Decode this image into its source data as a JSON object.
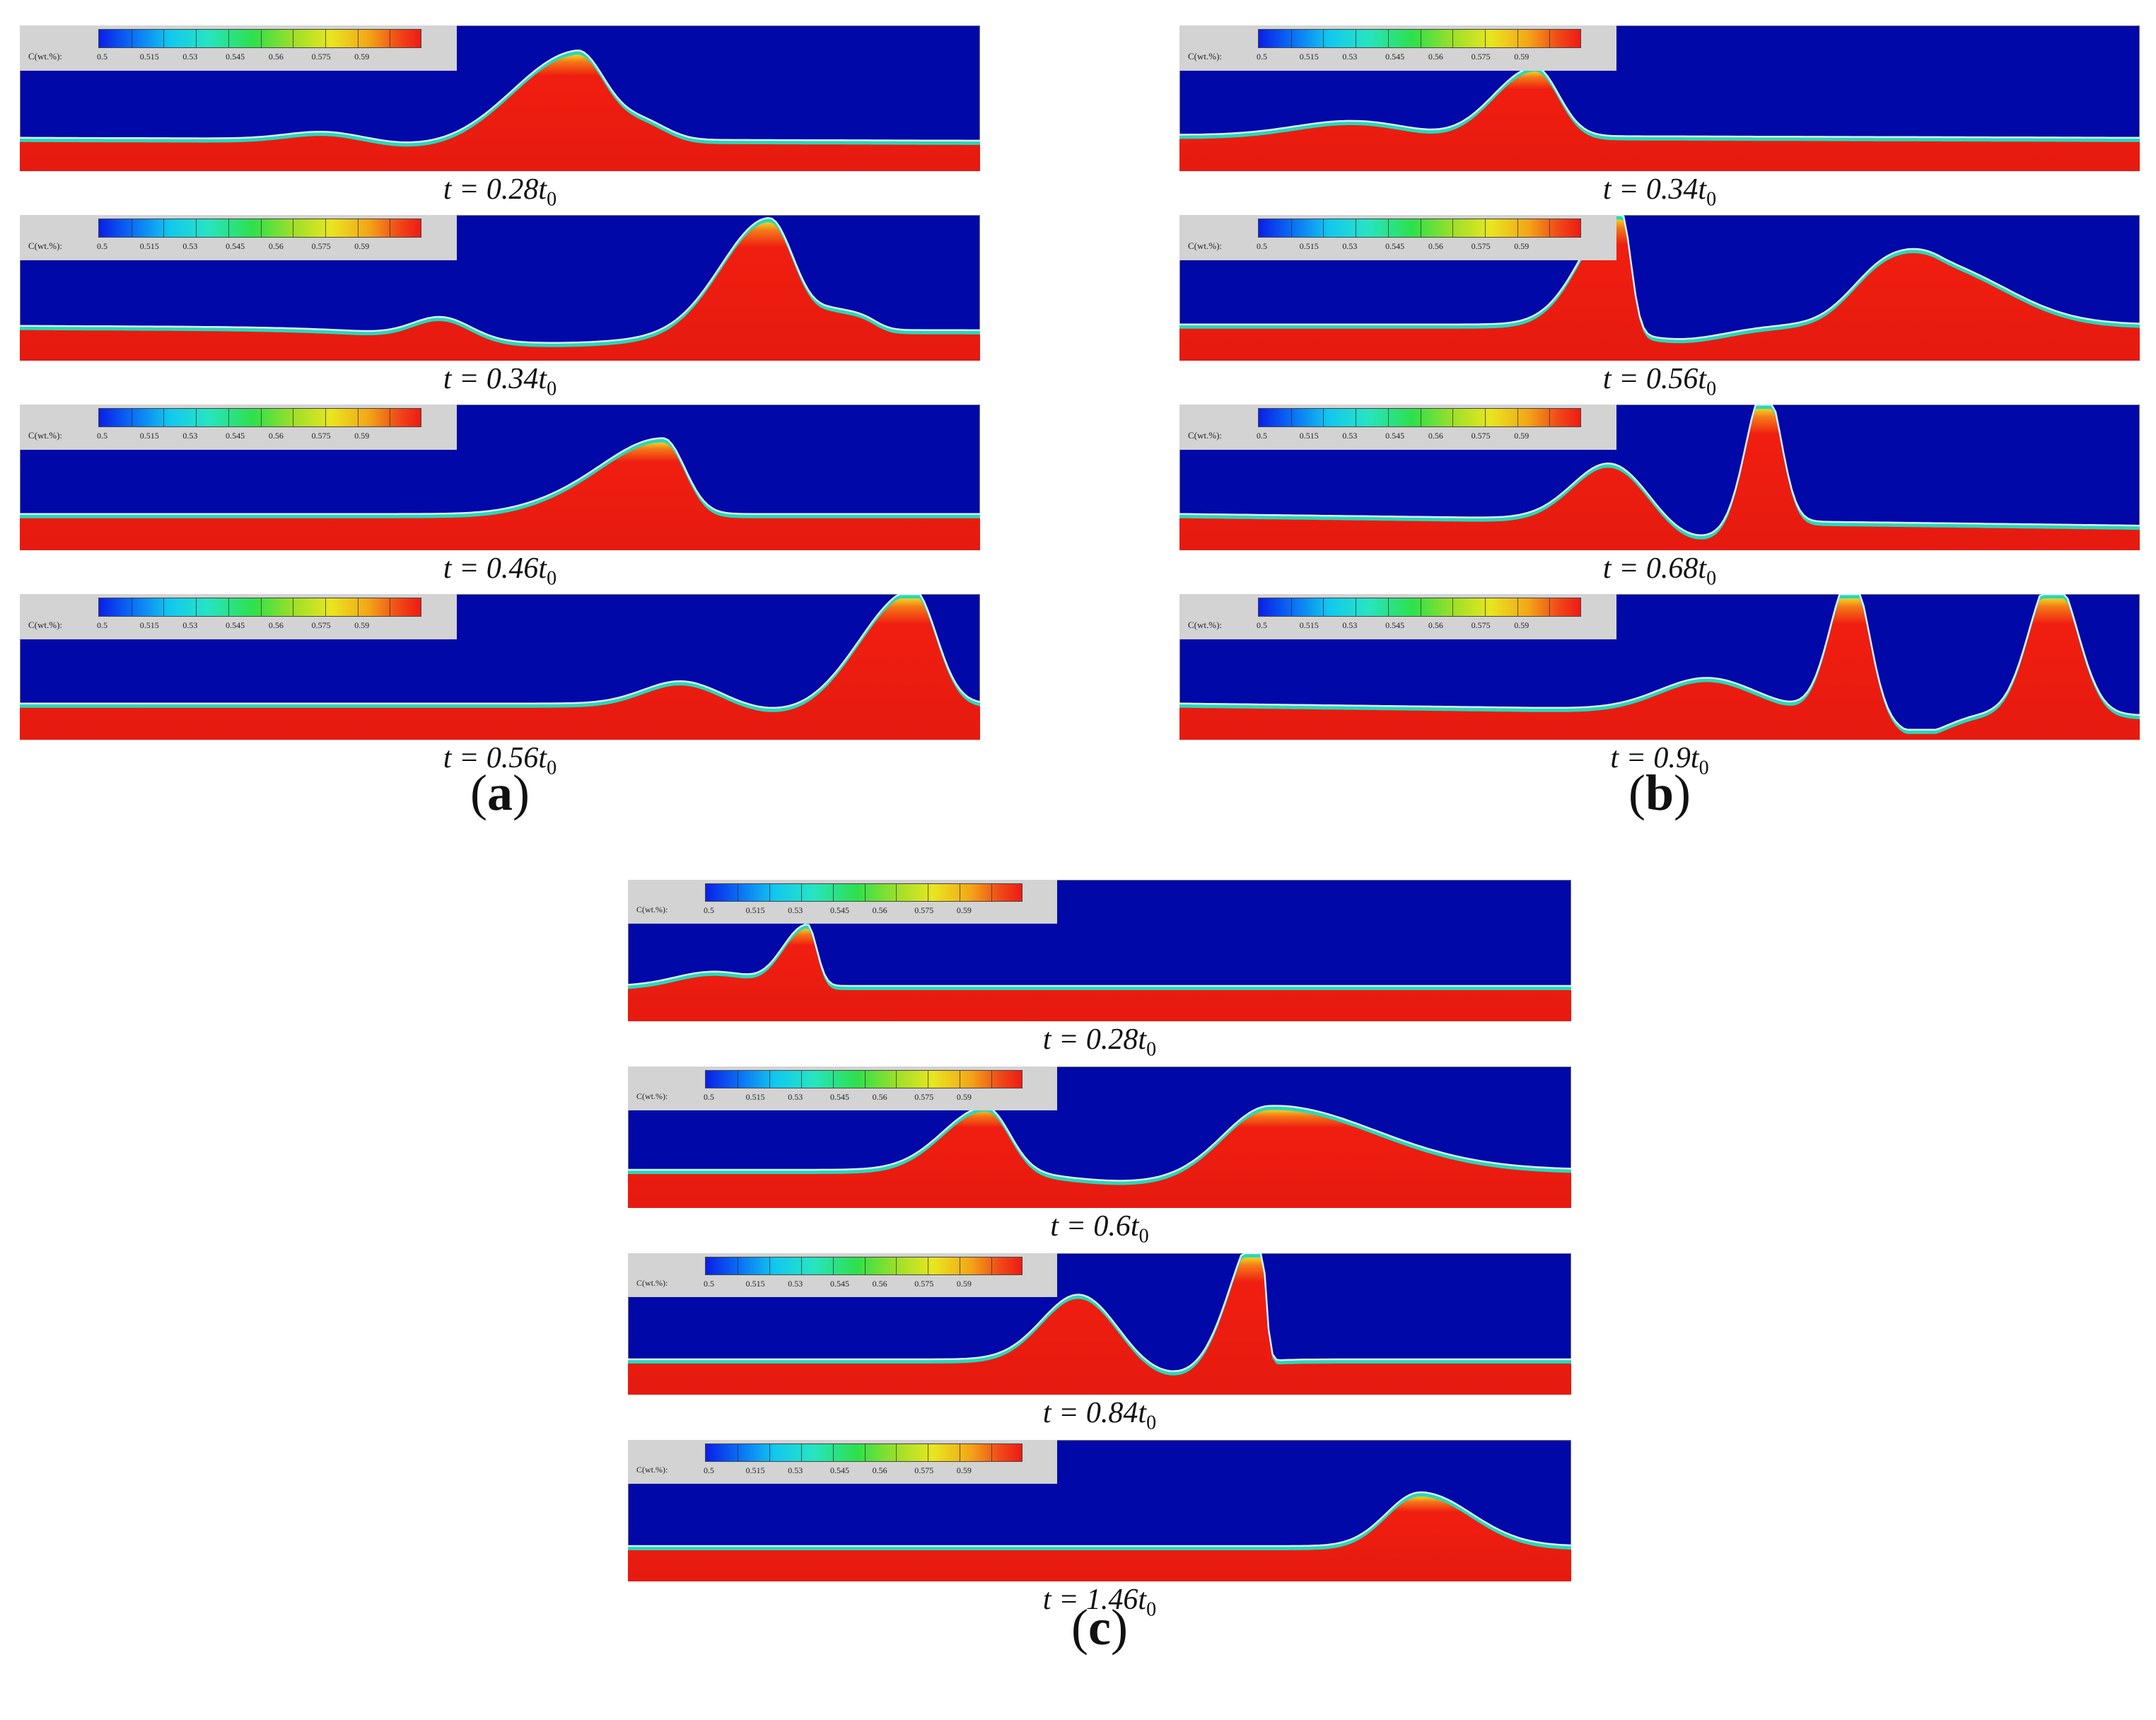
{
  "colormap": {
    "title": "C(wt.%):",
    "ticks": [
      "0.5",
      "0.515",
      "0.53",
      "0.545",
      "0.56",
      "0.575",
      "0.59"
    ],
    "colors": [
      "#0a1fe6",
      "#0a6bf5",
      "#12c8ee",
      "#27e4c2",
      "#2ee04a",
      "#9adf2a",
      "#e8e620",
      "#f3a418",
      "#f04a18",
      "#ee1b14"
    ]
  },
  "colors": {
    "fluid": "#0008a8",
    "deposit": "#f01e10",
    "edge": "#d8f0ff"
  },
  "groups": [
    {
      "id": "a",
      "label": "a",
      "snapshots": [
        {
          "time_coeff": "0.28"
        },
        {
          "time_coeff": "0.34"
        },
        {
          "time_coeff": "0.46"
        },
        {
          "time_coeff": "0.56"
        }
      ]
    },
    {
      "id": "b",
      "label": "b",
      "snapshots": [
        {
          "time_coeff": "0.34"
        },
        {
          "time_coeff": "0.56"
        },
        {
          "time_coeff": "0.68"
        },
        {
          "time_coeff": "0.9"
        }
      ]
    },
    {
      "id": "c",
      "label": "c",
      "snapshots": [
        {
          "time_coeff": "0.28"
        },
        {
          "time_coeff": "0.6"
        },
        {
          "time_coeff": "0.84"
        },
        {
          "time_coeff": "1.46"
        }
      ]
    }
  ]
}
